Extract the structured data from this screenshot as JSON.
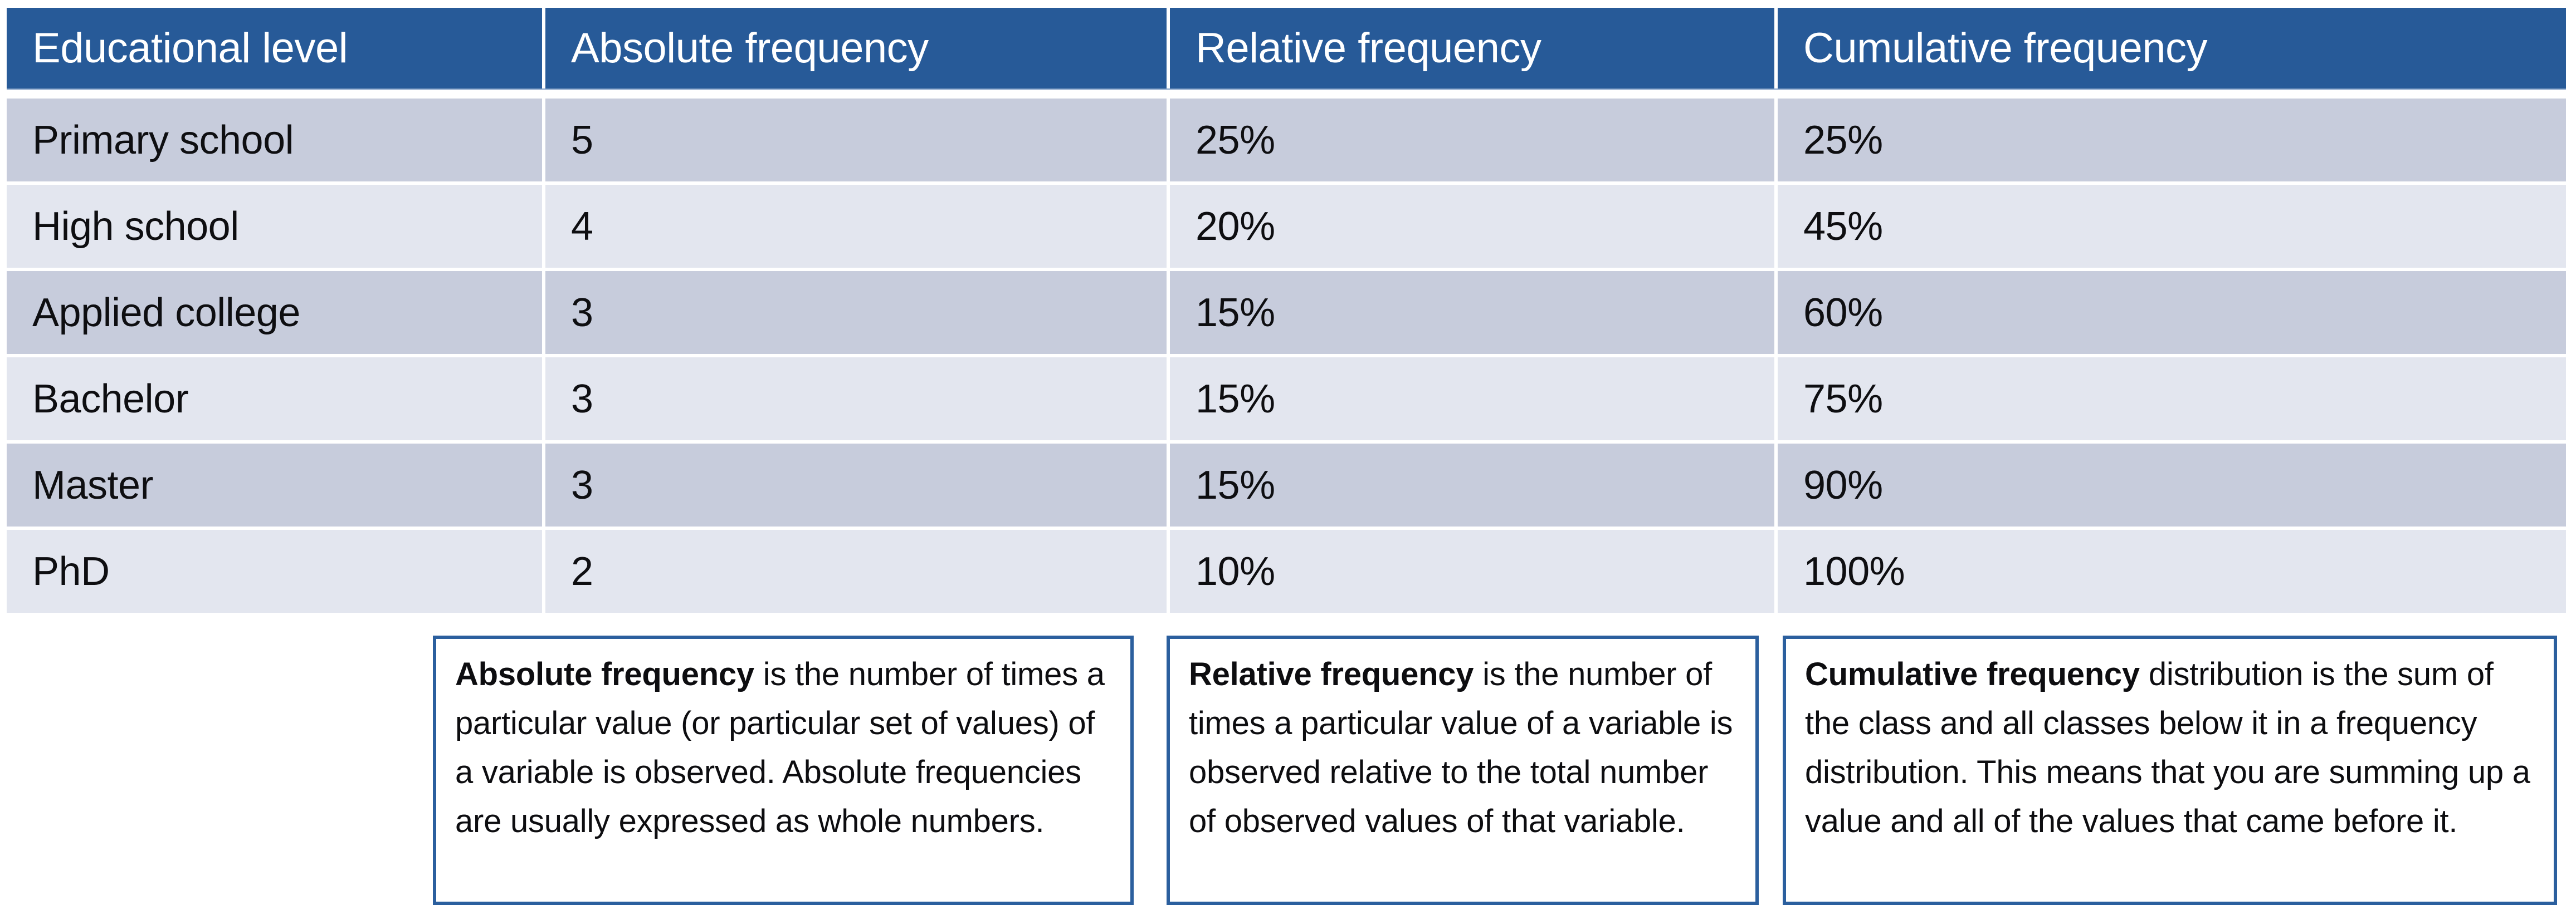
{
  "table": {
    "header": {
      "columns": [
        "Educational level",
        "Absolute frequency",
        "Relative frequency",
        "Cumulative frequency"
      ]
    },
    "rows": [
      {
        "level": "Primary school",
        "absolute": "5",
        "relative": "25%",
        "cumulative": "25%"
      },
      {
        "level": "High school",
        "absolute": "4",
        "relative": "20%",
        "cumulative": "45%"
      },
      {
        "level": "Applied college",
        "absolute": "3",
        "relative": "15%",
        "cumulative": "60%"
      },
      {
        "level": "Bachelor",
        "absolute": "3",
        "relative": "15%",
        "cumulative": "75%"
      },
      {
        "level": "Master",
        "absolute": "3",
        "relative": "15%",
        "cumulative": "90%"
      },
      {
        "level": "PhD",
        "absolute": "2",
        "relative": "10%",
        "cumulative": "100%"
      }
    ]
  },
  "notes": [
    {
      "term": "Absolute frequency",
      "rest": " is the number of times a particular value (or particular set of values) of a variable is observed. Absolute frequencies are usually expressed as whole numbers."
    },
    {
      "term": "Relative frequency",
      "rest": " is the number of times a particular value of a variable is observed relative to the total number of observed values of that variable."
    },
    {
      "term": "Cumulative frequency",
      "rest": " distribution is the sum of the class and all classes below it in a frequency distribution. This means that you are summing up a value and all of the values that came before it."
    }
  ],
  "colors": {
    "header_bg": "#275A98",
    "header_text": "#FFFFFF",
    "row_band_dark": "#C7CCDC",
    "row_band_light": "#E3E6EF",
    "header_underline": "#7D9CC4",
    "note_border": "#2B5F9E",
    "body_text": "#0E0E11",
    "page_bg": "#FFFFFF"
  }
}
